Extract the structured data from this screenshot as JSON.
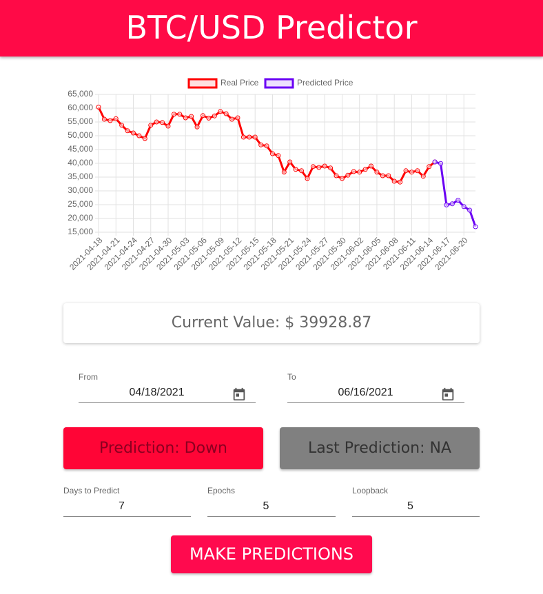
{
  "header": {
    "title": "BTC/USD Predictor"
  },
  "chart_data": {
    "type": "line",
    "categories": [
      "2021-04-18",
      null,
      null,
      "2021-04-21",
      null,
      null,
      "2021-04-24",
      null,
      null,
      "2021-04-27",
      null,
      null,
      "2021-04-30",
      null,
      null,
      "2021-05-03",
      null,
      null,
      "2021-05-06",
      null,
      null,
      "2021-05-09",
      null,
      null,
      "2021-05-12",
      null,
      null,
      "2021-05-15",
      null,
      null,
      "2021-05-18",
      null,
      null,
      "2021-05-21",
      null,
      null,
      "2021-05-24",
      null,
      null,
      "2021-05-27",
      null,
      null,
      "2021-05-30",
      null,
      null,
      "2021-06-02",
      null,
      null,
      "2021-06-05",
      null,
      null,
      "2021-06-08",
      null,
      null,
      "2021-06-11",
      null,
      null,
      "2021-06-14",
      null,
      null,
      "2021-06-17",
      null,
      null,
      "2021-06-20",
      null,
      null
    ],
    "series": [
      {
        "name": "Real Price",
        "color": "#ff0000",
        "values": [
          60400,
          56000,
          55500,
          56200,
          53800,
          51800,
          51000,
          50000,
          49000,
          53800,
          55000,
          54800,
          53500,
          57800,
          57800,
          56500,
          57000,
          53200,
          57300,
          56400,
          57200,
          58800,
          58000,
          56000,
          56500,
          49500,
          49500,
          49500,
          46700,
          46300,
          43500,
          42800,
          36800,
          40500,
          37800,
          37300,
          34500,
          38800,
          38500,
          39000,
          38300,
          35500,
          34500,
          35700,
          37000,
          36800,
          37800,
          39000,
          36800,
          35500,
          35500,
          33500,
          33200,
          37300,
          36800,
          37300,
          35300,
          38800,
          40500,
          null,
          null,
          null,
          null,
          null,
          null,
          null
        ]
      },
      {
        "name": "Predicted Price",
        "color": "#6a00f4",
        "values": [
          null,
          null,
          null,
          null,
          null,
          null,
          null,
          null,
          null,
          null,
          null,
          null,
          null,
          null,
          null,
          null,
          null,
          null,
          null,
          null,
          null,
          null,
          null,
          null,
          null,
          null,
          null,
          null,
          null,
          null,
          null,
          null,
          null,
          null,
          null,
          null,
          null,
          null,
          null,
          null,
          null,
          null,
          null,
          null,
          null,
          null,
          null,
          null,
          null,
          null,
          null,
          null,
          null,
          null,
          null,
          null,
          null,
          null,
          40500,
          39929,
          24900,
          25300,
          26600,
          24300,
          23000,
          17000
        ]
      }
    ],
    "ylim": [
      15000,
      65000
    ],
    "yticks": [
      {
        "value": 15000,
        "label": "15,000"
      },
      {
        "value": 20000,
        "label": "20,000"
      },
      {
        "value": 25000,
        "label": "25,000"
      },
      {
        "value": 30000,
        "label": "30,000"
      },
      {
        "value": 35000,
        "label": "35,000"
      },
      {
        "value": 40000,
        "label": "40,000"
      },
      {
        "value": 45000,
        "label": "45,000"
      },
      {
        "value": 50000,
        "label": "50,000"
      },
      {
        "value": 55000,
        "label": "55,000"
      },
      {
        "value": 60000,
        "label": "60,000"
      },
      {
        "value": 65000,
        "label": "65,000"
      }
    ],
    "grid": true,
    "legend": "top"
  },
  "current_value": "Current Value: $ 39928.87",
  "dates": {
    "from": {
      "label": "From",
      "value": "04/18/2021"
    },
    "to": {
      "label": "To",
      "value": "06/16/2021"
    }
  },
  "prediction": "Prediction: Down",
  "last_prediction": "Last Prediction: NA",
  "params": [
    {
      "label": "Days to Predict",
      "value": "7"
    },
    {
      "label": "Epochs",
      "value": "5"
    },
    {
      "label": "Loopback",
      "value": "5"
    }
  ],
  "button": "MAKE PREDICTIONS"
}
